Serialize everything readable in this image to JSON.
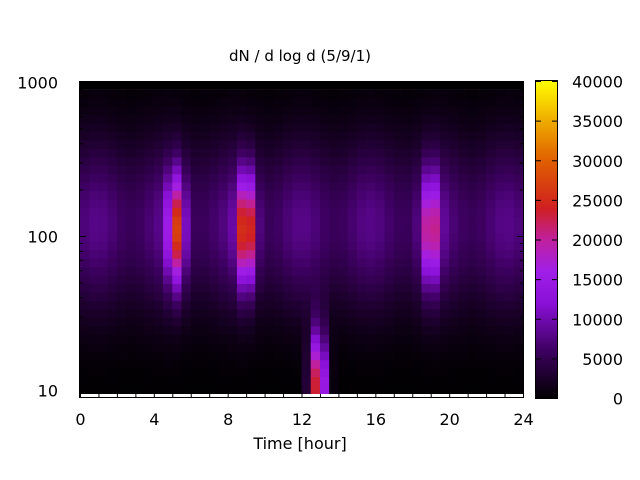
{
  "chart_data": {
    "type": "heatmap",
    "title": "dN / d log d (5/9/1)",
    "xlabel": "Time [hour]",
    "ylabel": "",
    "xlim": [
      0,
      24
    ],
    "ylim": [
      9,
      1000
    ],
    "y_scale": "log",
    "x_ticks": [
      0,
      4,
      8,
      12,
      16,
      20,
      24
    ],
    "x_tick_labels": [
      "0",
      "4",
      "8",
      "12",
      "16",
      "20",
      "24"
    ],
    "y_ticks": [
      10,
      100,
      1000
    ],
    "y_tick_labels": [
      "10",
      "100",
      "1000"
    ],
    "colorbar": {
      "min": 0,
      "max": 40000,
      "ticks": [
        0,
        5000,
        10000,
        15000,
        20000,
        25000,
        30000,
        35000,
        40000
      ],
      "tick_labels": [
        "0",
        "5000",
        "10000",
        "15000",
        "20000",
        "25000",
        "30000",
        "35000",
        "40000"
      ],
      "palette": "black-purple-red-yellow"
    },
    "data_top_edge": 900,
    "data_bottom_edge": 9.5,
    "background_level": 8000,
    "background_peak_diameter": 120,
    "hotspots": [
      {
        "time": 5.2,
        "diameter": 110,
        "value": 20000
      },
      {
        "time": 9.0,
        "diameter": 110,
        "value": 24000
      },
      {
        "time": 12.9,
        "diameter": 10.5,
        "value": 26000
      },
      {
        "time": 19.0,
        "diameter": 110,
        "value": 17000
      }
    ]
  }
}
